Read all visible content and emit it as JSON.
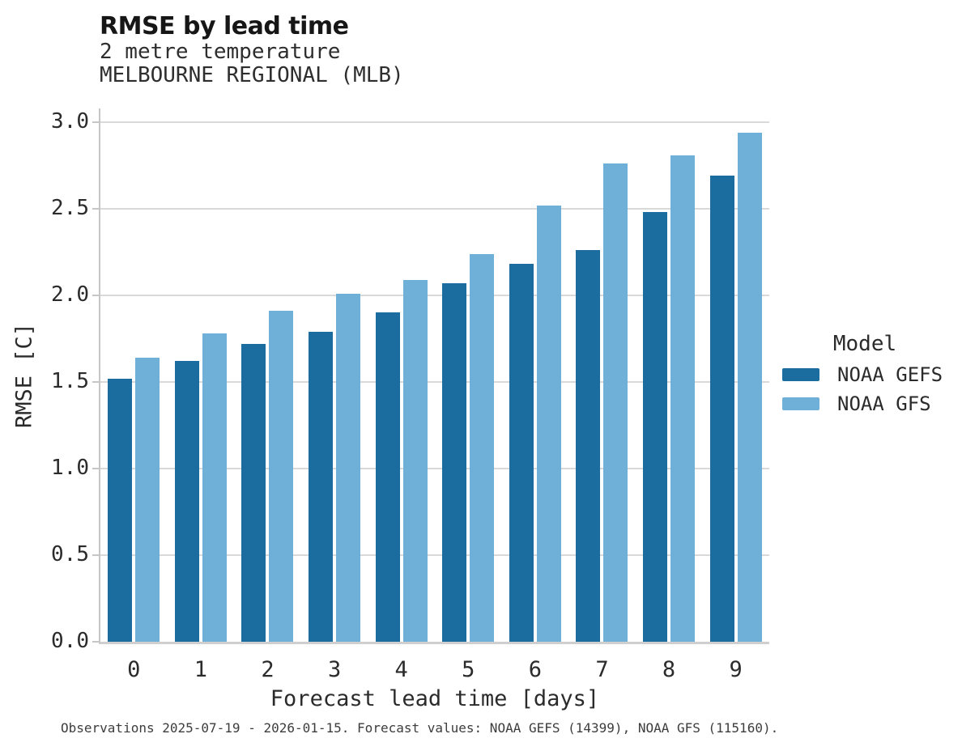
{
  "header": {
    "title": "RMSE by lead time",
    "subtitle_line1": "2 metre temperature",
    "subtitle_line2": "MELBOURNE REGIONAL (MLB)"
  },
  "legend": {
    "title": "Model",
    "items": [
      {
        "label": "NOAA GEFS",
        "color": "#1a6d9e"
      },
      {
        "label": "NOAA GFS",
        "color": "#6fb0d8"
      }
    ]
  },
  "footer": {
    "note": "Observations 2025-07-19 - 2026-01-15. Forecast values: NOAA GEFS (14399), NOAA GFS (115160)."
  },
  "colors": {
    "gefs_dark_blue": "#1a6d9e",
    "gfs_light_blue": "#6fb0d8",
    "gridline_gray": "#d9d9d9",
    "axis_gray": "#c6c6c6",
    "text_dark": "#2b2b2b"
  },
  "chart_data": {
    "type": "bar",
    "title": "RMSE by lead time",
    "subtitle": [
      "2 metre temperature",
      "MELBOURNE REGIONAL (MLB)"
    ],
    "categories": [
      "0",
      "1",
      "2",
      "3",
      "4",
      "5",
      "6",
      "7",
      "8",
      "9"
    ],
    "series": [
      {
        "name": "NOAA GEFS",
        "color": "#1a6d9e",
        "values": [
          1.52,
          1.62,
          1.72,
          1.79,
          1.9,
          2.07,
          2.18,
          2.26,
          2.48,
          2.69
        ]
      },
      {
        "name": "NOAA GFS",
        "color": "#6fb0d8",
        "values": [
          1.64,
          1.78,
          1.91,
          2.01,
          2.09,
          2.24,
          2.52,
          2.76,
          2.81,
          2.94
        ]
      }
    ],
    "xlabel": "Forecast lead time [days]",
    "ylabel": "RMSE [C]",
    "ylim": [
      0.0,
      3.0
    ],
    "yticks": [
      0.0,
      0.5,
      1.0,
      1.5,
      2.0,
      2.5,
      3.0
    ],
    "grid": true,
    "legend_title": "Model",
    "legend_position": "right",
    "caption": "Observations 2025-07-19 - 2026-01-15. Forecast values: NOAA GEFS (14399), NOAA GFS (115160)."
  }
}
